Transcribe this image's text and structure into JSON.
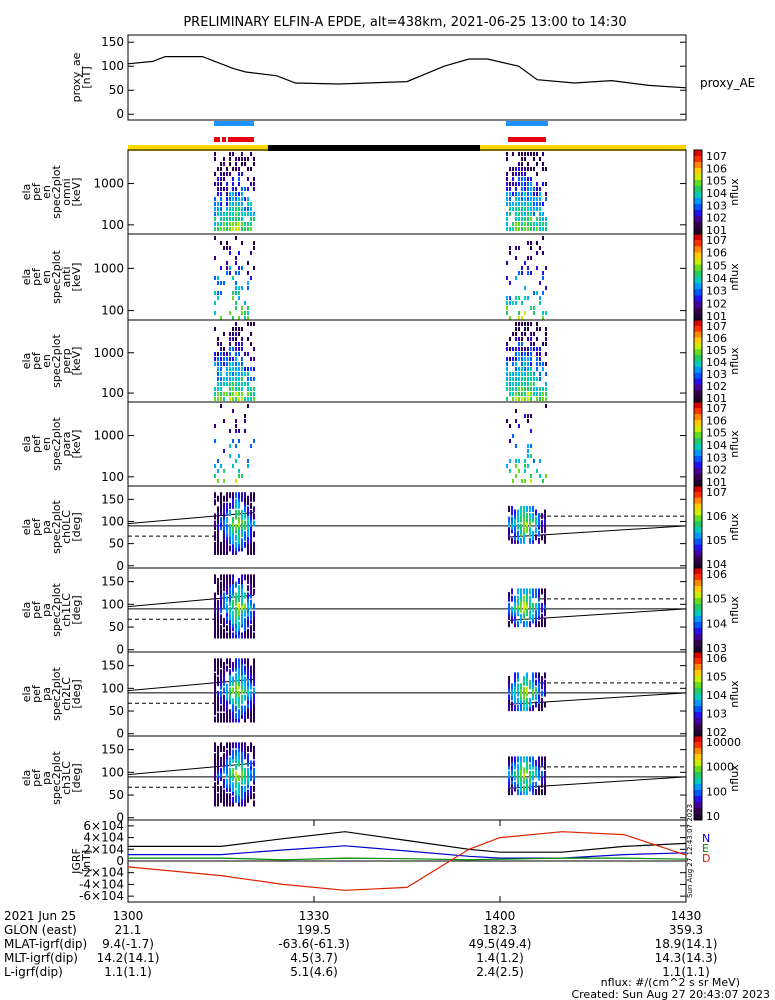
{
  "title": "PRELIMINARY ELFIN-A EPDE, alt=438km, 2021-06-25 13:00 to 14:30",
  "panels": [
    {
      "id": "proxy_ae",
      "ylabel": [
        "proxy_ae",
        "[nT]"
      ],
      "right_label": "proxy_AE",
      "ylim": [
        0,
        150
      ],
      "ticks": [
        "0",
        "50",
        "100",
        "150"
      ]
    },
    {
      "id": "omni",
      "ylabel": [
        "ela",
        "pef",
        "en",
        "spec2plot",
        "omni",
        "[keV]"
      ],
      "ticks": [
        "100",
        "1000"
      ],
      "colorbar_label": "nflux",
      "colorbar_ticks": [
        "10^7",
        "10^6",
        "10^5",
        "10^4",
        "10^3",
        "10^2",
        "10^1"
      ]
    },
    {
      "id": "anti",
      "ylabel": [
        "ela",
        "pef",
        "en",
        "spec2plot",
        "anti",
        "[keV]"
      ],
      "ticks": [
        "100",
        "1000"
      ],
      "colorbar_label": "nflux",
      "colorbar_ticks": [
        "10^7",
        "10^6",
        "10^5",
        "10^4",
        "10^3",
        "10^2",
        "10^1"
      ]
    },
    {
      "id": "perp",
      "ylabel": [
        "ela",
        "pef",
        "en",
        "spec2plot",
        "perp",
        "[keV]"
      ],
      "ticks": [
        "100",
        "1000"
      ],
      "colorbar_label": "nflux",
      "colorbar_ticks": [
        "10^7",
        "10^6",
        "10^5",
        "10^4",
        "10^3",
        "10^2",
        "10^1"
      ]
    },
    {
      "id": "para",
      "ylabel": [
        "ela",
        "pef",
        "en",
        "spec2plot",
        "para",
        "[keV]"
      ],
      "ticks": [
        "100",
        "1000"
      ],
      "colorbar_label": "nflux",
      "colorbar_ticks": [
        "10^7",
        "10^6",
        "10^5",
        "10^4",
        "10^3",
        "10^2",
        "10^1"
      ]
    },
    {
      "id": "ch0LC",
      "ylabel": [
        "ela",
        "pef",
        "pa",
        "spec2plot",
        "ch0LC",
        "[deg]"
      ],
      "ticks": [
        "0",
        "50",
        "100",
        "150"
      ],
      "colorbar_label": "nflux",
      "colorbar_ticks": [
        "10^7",
        "10^6",
        "10^5",
        "10^4"
      ]
    },
    {
      "id": "ch1LC",
      "ylabel": [
        "ela",
        "pef",
        "pa",
        "spec2plot",
        "ch1LC",
        "[deg]"
      ],
      "ticks": [
        "0",
        "50",
        "100",
        "150"
      ],
      "colorbar_label": "nflux",
      "colorbar_ticks": [
        "10^6",
        "10^5",
        "10^4",
        "10^3"
      ]
    },
    {
      "id": "ch2LC",
      "ylabel": [
        "ela",
        "pef",
        "pa",
        "spec2plot",
        "ch2LC",
        "[deg]"
      ],
      "ticks": [
        "0",
        "50",
        "100",
        "150"
      ],
      "colorbar_label": "nflux",
      "colorbar_ticks": [
        "10^6",
        "10^5",
        "10^4",
        "10^3",
        "10^2"
      ]
    },
    {
      "id": "ch3LC",
      "ylabel": [
        "ela",
        "pef",
        "pa",
        "spec2plot",
        "ch3LC",
        "[deg]"
      ],
      "ticks": [
        "0",
        "50",
        "100",
        "150"
      ],
      "colorbar_label": "nflux",
      "colorbar_ticks": [
        "10000",
        "1000",
        "100",
        "10"
      ]
    },
    {
      "id": "igrf",
      "ylabel": [
        "IGRF",
        "[nT]"
      ],
      "ticks": [
        "-6×10^4",
        "-4×10^4",
        "-2×10^4",
        "0",
        "2×10^4",
        "4×10^4",
        "6×10^4"
      ],
      "legend": [
        {
          "label": "N",
          "color": "#0000cc"
        },
        {
          "label": "E",
          "color": "#008800"
        },
        {
          "label": "D",
          "color": "#dd2200"
        }
      ],
      "vertical_note": "Sun Aug 27 12:43:07 2023"
    }
  ],
  "x_ticks": [
    "1300",
    "1330",
    "1400",
    "1430"
  ],
  "ephemeris": [
    {
      "label": "2021 Jun 25",
      "values": [
        "1300",
        "1330",
        "1400",
        "1430"
      ]
    },
    {
      "label": "GLON (east)",
      "values": [
        "21.1",
        "199.5",
        "182.3",
        "359.3"
      ]
    },
    {
      "label": "MLAT-igrf(dip)",
      "values": [
        "9.4(-1.7)",
        "-63.6(-61.3)",
        "49.5(49.4)",
        "18.9(14.1)"
      ]
    },
    {
      "label": "MLT-igrf(dip)",
      "values": [
        "14.2(14.1)",
        "4.5(3.7)",
        "1.4(1.2)",
        "14.3(14.3)"
      ]
    },
    {
      "label": "L-igrf(dip)",
      "values": [
        "1.1(1.1)",
        "5.1(4.6)",
        "2.4(2.5)",
        "1.1(1.1)"
      ]
    }
  ],
  "footer": {
    "units": "nflux: #/(cm^2 s sr MeV)",
    "created": "Created: Sun Aug 27 20:43:07 2023"
  },
  "colors": {
    "bar_yellow": "#ffd700",
    "bar_black": "#000000",
    "bar_blue": "#1e90ff",
    "bar_red": "#e8000b"
  },
  "chart_data": {
    "type": "line",
    "x_unit": "UT (HHMM)",
    "xlim": [
      "13:00",
      "14:30"
    ],
    "proxy_ae": {
      "x_min": [
        0,
        4,
        6,
        12,
        17,
        19,
        24,
        27,
        34,
        45,
        51,
        55,
        58,
        63,
        66,
        72,
        78,
        84,
        90
      ],
      "y": [
        105,
        110,
        120,
        120,
        95,
        88,
        80,
        65,
        63,
        68,
        100,
        115,
        115,
        100,
        72,
        65,
        70,
        60,
        55
      ]
    },
    "igrf": {
      "x_min": [
        0,
        15,
        25,
        35,
        45,
        55,
        60,
        70,
        80,
        90
      ],
      "N": [
        25000,
        25000,
        38000,
        50000,
        35000,
        20000,
        15000,
        15000,
        25000,
        30000
      ],
      "E": [
        5000,
        5000,
        2000,
        5000,
        4000,
        2000,
        3000,
        5000,
        5000,
        3000
      ],
      "D": [
        -10000,
        -25000,
        -40000,
        -50000,
        -45000,
        20000,
        40000,
        50000,
        45000,
        10000
      ]
    }
  }
}
